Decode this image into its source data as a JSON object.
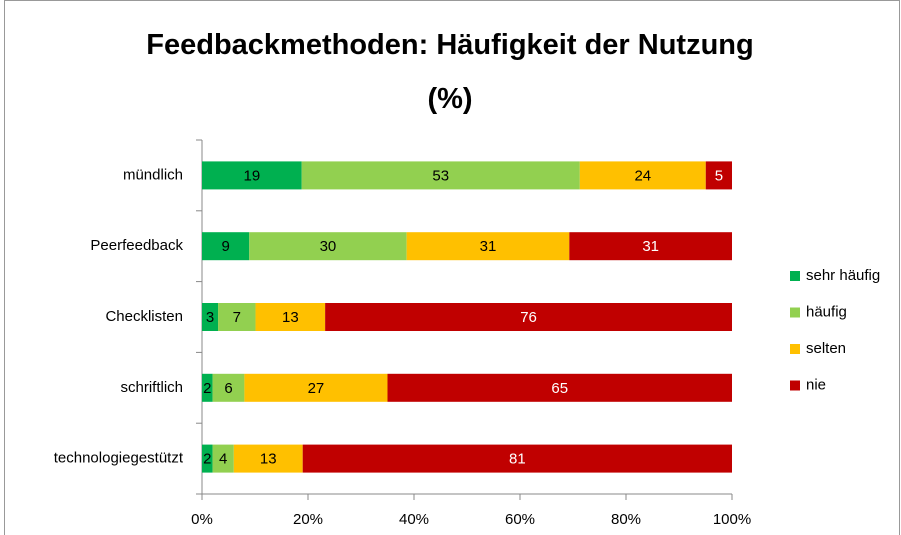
{
  "chart_data": {
    "type": "bar",
    "orientation": "horizontal",
    "percent_stacked": true,
    "title": "Feedbackmethoden: Häufigkeit der Nutzung (%)",
    "categories": [
      "mündlich",
      "Peerfeedback",
      "Checklisten",
      "schriftlich",
      "technologiegestützt"
    ],
    "series": [
      {
        "name": "sehr häufig",
        "color": "#00b050",
        "label_color": "#000000",
        "values": [
          19,
          9,
          3,
          2,
          2
        ]
      },
      {
        "name": "häufig",
        "color": "#92d050",
        "label_color": "#000000",
        "values": [
          53,
          30,
          7,
          6,
          4
        ]
      },
      {
        "name": "selten",
        "color": "#ffc000",
        "label_color": "#000000",
        "values": [
          24,
          31,
          13,
          27,
          13
        ]
      },
      {
        "name": "nie",
        "color": "#c00000",
        "label_color": "#ffffff",
        "values": [
          5,
          31,
          76,
          65,
          81
        ]
      }
    ],
    "xlim": [
      0,
      100
    ],
    "xticks": [
      {
        "value": 0,
        "label": "0%"
      },
      {
        "value": 20,
        "label": "20%"
      },
      {
        "value": 40,
        "label": "40%"
      },
      {
        "value": 60,
        "label": "60%"
      },
      {
        "value": 80,
        "label": "80%"
      },
      {
        "value": 100,
        "label": "100%"
      }
    ],
    "legend": "right",
    "grid": false
  }
}
